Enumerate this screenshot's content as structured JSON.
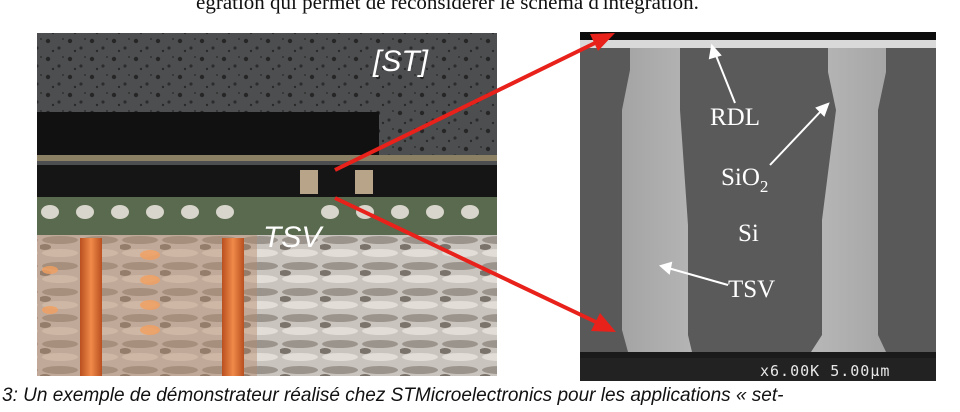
{
  "paper": {
    "top_text": "égration qui permet de reconsidérer le schéma d'intégration.",
    "caption": "3: Un exemple de démonstrateur réalisé chez STMicroelectronics pour les applications « set-"
  },
  "figure_left": {
    "label_source": "[ST]",
    "label_tsv": "TSV"
  },
  "figure_right": {
    "label_rdl": "RDL",
    "label_sio2": "SiO",
    "label_sio2_subscript": "2",
    "label_si": "Si",
    "label_tsv": "TSV",
    "scale_text": "x6.00K 5.00µm"
  },
  "colors": {
    "arrow": "#e8211b",
    "sem_pillar": "#595959",
    "sem_gap": "#b3b3b3"
  }
}
